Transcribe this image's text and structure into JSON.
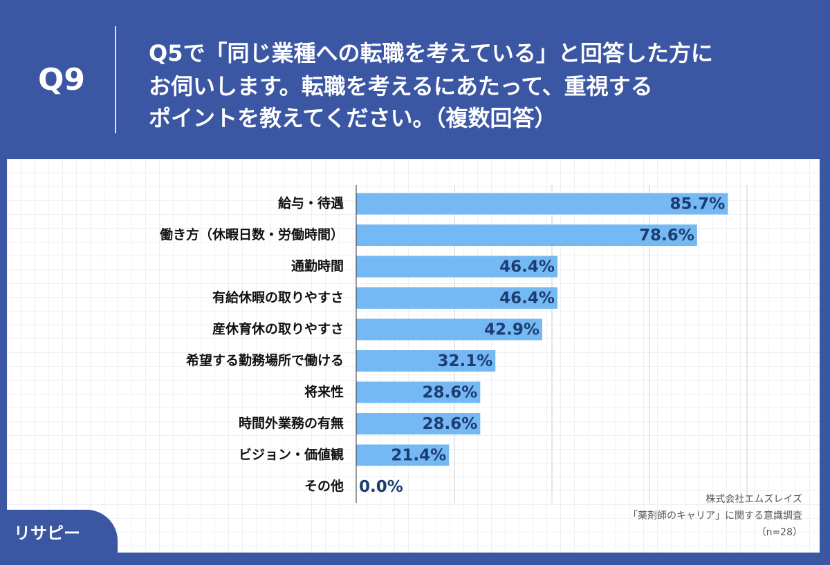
{
  "header": {
    "badge": "Q9",
    "lines": [
      "Q5で「同じ業種への転職を考えている」と回答した方に",
      "お伺いします。転職を考えるにあたって、重視する",
      "ポイントを教えてください。（複数回答）"
    ]
  },
  "chart_data": {
    "type": "bar",
    "orientation": "horizontal",
    "categories": [
      "給与・待遇",
      "働き方（休暇日数・労働時間）",
      "通勤時間",
      "有給休暇の取りやすさ",
      "産休育休の取りやすさ",
      "希望する勤務場所で働ける",
      "将来性",
      "時間外業務の有無",
      "ビジョン・価値観",
      "その他"
    ],
    "values": [
      85.7,
      78.6,
      46.4,
      46.4,
      42.9,
      32.1,
      28.6,
      28.6,
      21.4,
      0.0
    ],
    "value_labels": [
      "85.7%",
      "78.6%",
      "46.4%",
      "46.4%",
      "42.9%",
      "32.1%",
      "28.6%",
      "28.6%",
      "21.4%",
      "0.0%"
    ],
    "color": "#74b9f3",
    "xlim": [
      0,
      100
    ]
  },
  "footer": {
    "source": [
      "株式会社エムズレイズ",
      "「薬剤師のキャリア」に関する意識調査",
      "（n=28）"
    ],
    "logo": "リサピー"
  }
}
